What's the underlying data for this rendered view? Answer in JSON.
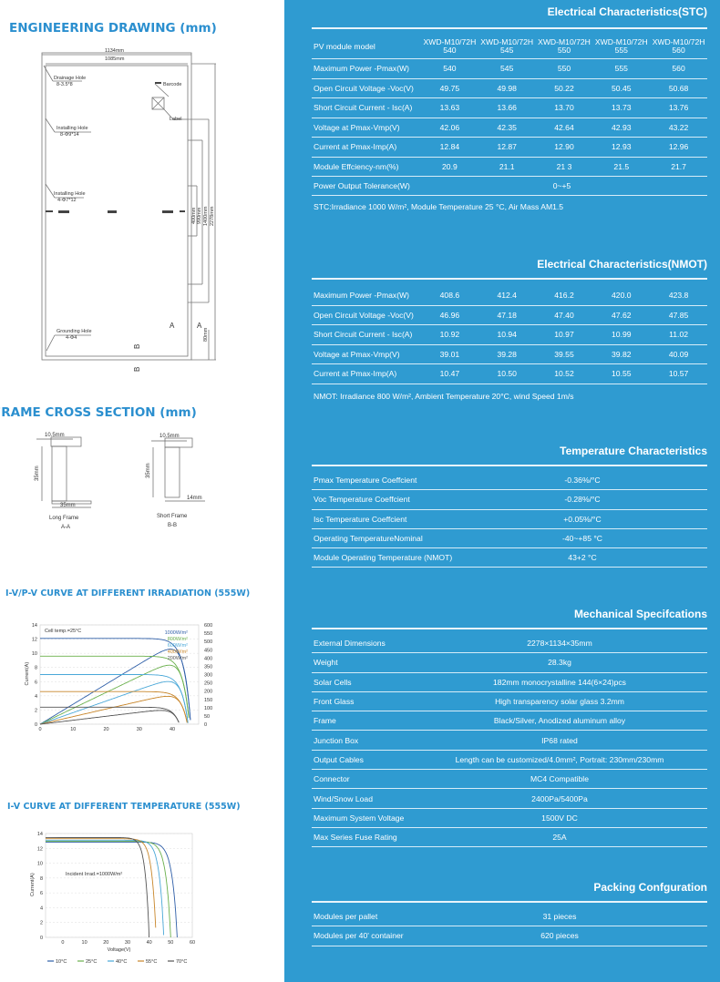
{
  "left": {
    "drawing_title": "ENGINEERING DRAWING (mm)",
    "drawing": {
      "w1": "1134mm",
      "w2": "1085mm",
      "drain": "Drainage Hole",
      "drain_spec": "8-3.5*8",
      "barcode": "Barcode",
      "label": "Label",
      "inst1": "Installing Hole",
      "inst1_spec": "8-Φ9*14",
      "inst2": "Installing Hole",
      "inst2_spec": "4-Φ7*12",
      "d400": "400mm",
      "d990": "990mm",
      "d1400": "1400mm",
      "d2278": "2278mm",
      "a": "A",
      "d80": "80mm",
      "ground": "Grounding Hole",
      "ground_spec": "4-Φ4",
      "b": "B"
    },
    "frame_title": "FRAME CROSS SECTION (mm)",
    "frame": {
      "long_w": "10.5mm",
      "long_h": "35mm",
      "long_b": "35mm",
      "long_name": "Long Frame",
      "long_sec": "A-A",
      "short_w": "10.5mm",
      "short_h": "35mm",
      "short_b": "14mm",
      "short_name": "Short Frame",
      "short_sec": "B-B"
    }
  },
  "chart_data": [
    {
      "type": "line",
      "title": "I-V/P-V CURVE AT DIFFERENT IRRADIATION (555W)",
      "annotation": "Cell temp.=25°C",
      "ylabel": "Current(A)",
      "xlim": [
        0,
        48
      ],
      "ylim": [
        0,
        14
      ],
      "y2lim": [
        0,
        600
      ],
      "xticks": [
        "0",
        "10",
        "20",
        "30",
        "40"
      ],
      "yticks": [
        "0",
        "2",
        "4",
        "6",
        "8",
        "10",
        "12",
        "14"
      ],
      "y2ticks": [
        "0",
        "50",
        "100",
        "150",
        "200",
        "250",
        "300",
        "350",
        "400",
        "450",
        "500",
        "550",
        "600"
      ],
      "series": [
        {
          "name": "1000W/m²",
          "color": "#2f5fa8",
          "isc": 12.1,
          "voc": 45.6
        },
        {
          "name": "800W/m²",
          "color": "#6ab04c",
          "isc": 9.6,
          "voc": 45.2
        },
        {
          "name": "600W/m²",
          "color": "#4aa8d8",
          "isc": 7.0,
          "voc": 44.8
        },
        {
          "name": "400W/m²",
          "color": "#c8862a",
          "isc": 4.6,
          "voc": 44.6
        },
        {
          "name": "200W/m²",
          "color": "#555555",
          "isc": 2.4,
          "voc": 42.2
        }
      ]
    },
    {
      "type": "line",
      "title": "I-V CURVE AT DIFFERENT TEMPERATURE (555W)",
      "annotation": "Incident Irrad.=1000W/m²",
      "xlabel": "Voltage(V)",
      "ylabel": "Current(A)",
      "xlim": [
        -8,
        60
      ],
      "ylim": [
        0,
        14
      ],
      "xticks": [
        "0",
        "10",
        "20",
        "30",
        "40",
        "50",
        "60"
      ],
      "yticks": [
        "0",
        "2",
        "4",
        "6",
        "8",
        "10",
        "12",
        "14"
      ],
      "series": [
        {
          "name": "10°C",
          "color": "#2f5fa8",
          "isc": 12.85,
          "voc": 53
        },
        {
          "name": "25°C",
          "color": "#6ab04c",
          "isc": 12.95,
          "voc": 50
        },
        {
          "name": "40°C",
          "color": "#4aa8d8",
          "isc": 13.1,
          "voc": 46.8
        },
        {
          "name": "55°C",
          "color": "#c8862a",
          "isc": 13.3,
          "voc": 43.2
        },
        {
          "name": "70°C",
          "color": "#555555",
          "isc": 13.45,
          "voc": 40
        }
      ]
    }
  ],
  "stc": {
    "title": "Electrical Characteristics(STC)",
    "header": "PV module model",
    "models": [
      [
        "XWD-M10/72H",
        "540"
      ],
      [
        "XWD-M10/72H",
        "545"
      ],
      [
        "XWD-M10/72H",
        "550"
      ],
      [
        "XWD-M10/72H",
        "555"
      ],
      [
        "XWD-M10/72H",
        "560"
      ]
    ],
    "rows": [
      {
        "label": "Maximum Power -Pmax(W)",
        "v": [
          "540",
          "545",
          "550",
          "555",
          "560"
        ]
      },
      {
        "label": "Open Circuit Voltage -Voc(V)",
        "v": [
          "49.75",
          "49.98",
          "50.22",
          "50.45",
          "50.68"
        ]
      },
      {
        "label": "Short Circuit Current - Isc(A)",
        "v": [
          "13.63",
          "13.66",
          "13.70",
          "13.73",
          "13.76"
        ]
      },
      {
        "label": "Voltage at Pmax-Vmp(V)",
        "v": [
          "42.06",
          "42.35",
          "42.64",
          "42.93",
          "43.22"
        ]
      },
      {
        "label": "Current at Pmax-Imp(A)",
        "v": [
          "12.84",
          "12.87",
          "12.90",
          "12.93",
          "12.96"
        ]
      },
      {
        "label": "Module Effciency-nm(%)",
        "v": [
          "20.9",
          "21.1",
          "21 3",
          "21.5",
          "21.7"
        ]
      }
    ],
    "tolerance_label": "Power Output Tolerance(W)",
    "tolerance": "0~+5",
    "note": "STC:Irradiance 1000 W/m², Module Temperature 25 °C, Air Mass AM1.5"
  },
  "nmot": {
    "title": "Electrical Characteristics(NMOT)",
    "rows": [
      {
        "label": "Maximum Power -Pmax(W)",
        "v": [
          "408.6",
          "412.4",
          "416.2",
          "420.0",
          "423.8"
        ]
      },
      {
        "label": "Open Circuit Voltage -Voc(V)",
        "v": [
          "46.96",
          "47.18",
          "47.40",
          "47.62",
          "47.85"
        ]
      },
      {
        "label": "Short Circuit Current - Isc(A)",
        "v": [
          "10.92",
          "10.94",
          "10.97",
          "10.99",
          "11.02"
        ]
      },
      {
        "label": "Voltage at Pmax-Vmp(V)",
        "v": [
          "39.01",
          "39.28",
          "39.55",
          "39.82",
          "40.09"
        ]
      },
      {
        "label": "Current at Pmax-Imp(A)",
        "v": [
          "10.47",
          "10.50",
          "10.52",
          "10.55",
          "10.57"
        ]
      }
    ],
    "note": "NMOT: Irradiance 800 W/m², Ambient Temperature 20°C, wind Speed 1m/s"
  },
  "temp": {
    "title": "Temperature Characteristics",
    "rows": [
      {
        "label": "Pmax Temperature Coeffcient",
        "v": "-0.36%/°C"
      },
      {
        "label": "Voc Temperature Coeffcient",
        "v": "-0.28%/°C"
      },
      {
        "label": "Isc Temperature Coeffcient",
        "v": "+0.05%/°C"
      },
      {
        "label": "Operating TemperatureNominal",
        "v": "-40~+85 °C"
      },
      {
        "label": "Module Operating Temperature (NMOT)",
        "v": "43+2 °C"
      }
    ]
  },
  "mech": {
    "title": "Mechanical Specifcations",
    "rows": [
      {
        "label": "External Dimensions",
        "v": "2278×1134×35mm"
      },
      {
        "label": "Weight",
        "v": "28.3kg"
      },
      {
        "label": "Solar Cells",
        "v": "182mm monocrystalline 144(6×24)pcs"
      },
      {
        "label": "Front Glass",
        "v": "High transparency solar glass 3.2mm"
      },
      {
        "label": "Frame",
        "v": "Black/Silver, Anodized aluminum alloy"
      },
      {
        "label": "Junction Box",
        "v": "IP68 rated"
      },
      {
        "label": "Output Cables",
        "v": "Length can be customized/4.0mm², Portrait: 230mm/230mm"
      },
      {
        "label": "Connector",
        "v": "MC4 Compatible"
      },
      {
        "label": "Wind/Snow Load",
        "v": "2400Pa/5400Pa"
      },
      {
        "label": "Maximum System Voltage",
        "v": "1500V DC"
      },
      {
        "label": "Max Series Fuse Rating",
        "v": "25A"
      }
    ]
  },
  "pack": {
    "title": "Packing Confguration",
    "rows": [
      {
        "label": "Modules per pallet",
        "v": "31 pieces"
      },
      {
        "label": "Modules per 40' container",
        "v": "620 pieces"
      }
    ]
  },
  "colors": {
    "panel": "#2f9bd1",
    "heading": "#2b8fcf"
  }
}
